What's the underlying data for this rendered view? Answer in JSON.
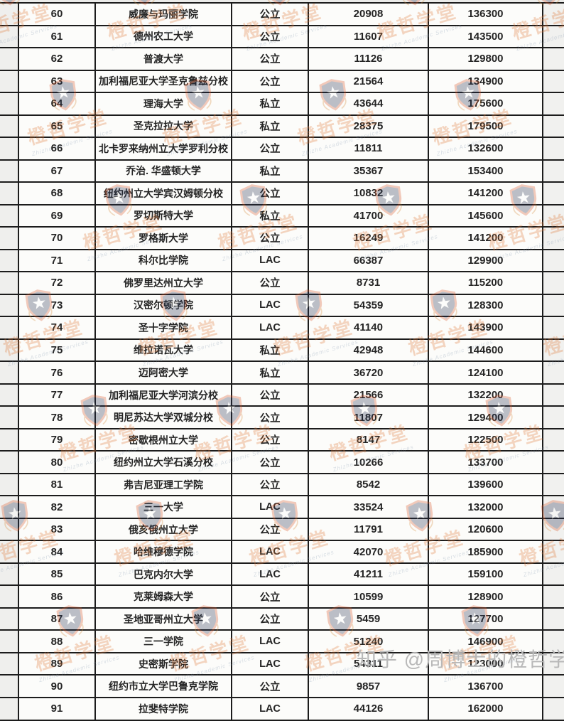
{
  "table": {
    "rows": [
      [
        "60",
        "威廉与玛丽学院",
        "公立",
        "20908",
        "136300"
      ],
      [
        "61",
        "德州农工大学",
        "公立",
        "11607",
        "143500"
      ],
      [
        "62",
        "普渡大学",
        "公立",
        "11126",
        "129800"
      ],
      [
        "63",
        "加利福尼亚大学圣克鲁兹分校",
        "公立",
        "21564",
        "134900"
      ],
      [
        "64",
        "理海大学",
        "私立",
        "43644",
        "175600"
      ],
      [
        "65",
        "圣克拉拉大学",
        "私立",
        "28375",
        "179500"
      ],
      [
        "66",
        "北卡罗来纳州立大学罗利分校",
        "公立",
        "11811",
        "132600"
      ],
      [
        "67",
        "乔治. 华盛顿大学",
        "私立",
        "35367",
        "153400"
      ],
      [
        "68",
        "纽约州立大学宾汉姆顿分校",
        "公立",
        "10832",
        "141200"
      ],
      [
        "69",
        "罗切斯特大学",
        "私立",
        "41700",
        "145600"
      ],
      [
        "70",
        "罗格斯大学",
        "公立",
        "16249",
        "141200"
      ],
      [
        "71",
        "科尔比学院",
        "LAC",
        "66387",
        "129900"
      ],
      [
        "72",
        "佛罗里达州立大学",
        "公立",
        "8731",
        "115200"
      ],
      [
        "73",
        "汉密尔顿学院",
        "LAC",
        "54359",
        "128300"
      ],
      [
        "74",
        "圣十字学院",
        "LAC",
        "41140",
        "143900"
      ],
      [
        "75",
        "维拉诺瓦大学",
        "私立",
        "42948",
        "144600"
      ],
      [
        "76",
        "迈阿密大学",
        "私立",
        "36720",
        "124100"
      ],
      [
        "77",
        "加利福尼亚大学河滨分校",
        "公立",
        "21566",
        "132200"
      ],
      [
        "78",
        "明尼苏达大学双城分校",
        "公立",
        "11807",
        "129400"
      ],
      [
        "79",
        "密歇根州立大学",
        "公立",
        "8147",
        "122500"
      ],
      [
        "80",
        "纽约州立大学石溪分校",
        "公立",
        "10266",
        "133700"
      ],
      [
        "81",
        "弗吉尼亚理工学院",
        "公立",
        "8542",
        "139600"
      ],
      [
        "82",
        "三一大学",
        "LAC",
        "33524",
        "132000"
      ],
      [
        "83",
        "俄亥俄州立大学",
        "公立",
        "11791",
        "120600"
      ],
      [
        "84",
        "哈维穆德学院",
        "LAC",
        "42070",
        "185900"
      ],
      [
        "85",
        "巴克内尔大学",
        "LAC",
        "41211",
        "159100"
      ],
      [
        "86",
        "克莱姆森大学",
        "公立",
        "10599",
        "128900"
      ],
      [
        "87",
        "圣地亚哥州立大学",
        "公立",
        "5459",
        "127700"
      ],
      [
        "88",
        "三一学院",
        "LAC",
        "51240",
        "146900"
      ],
      [
        "89",
        "史密斯学院",
        "LAC",
        "54311",
        "123000"
      ],
      [
        "90",
        "纽约市立大学巴鲁克学院",
        "公立",
        "9857",
        "136700"
      ],
      [
        "91",
        "拉斐特学院",
        "LAC",
        "44126",
        "162000"
      ]
    ]
  },
  "watermark": {
    "brand_cn": "橙哲学堂",
    "brand_en": "Zhizhe Academic Services",
    "colors": {
      "shield_border": "#d9572b",
      "shield_fill": "#273252",
      "star": "#ffffff",
      "laurel": "#d78c3a",
      "brand_text": "#e07a3a"
    }
  },
  "overlay": {
    "credit": "知乎 @周博士的橙哲学堂"
  }
}
